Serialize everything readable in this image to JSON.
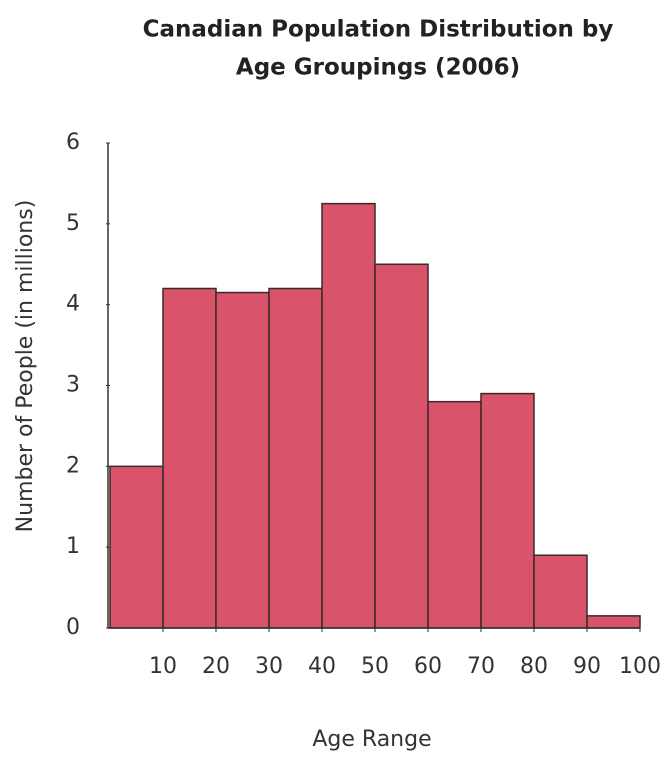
{
  "chart_data": {
    "type": "histogram",
    "title": [
      "Canadian Population Distribution by",
      "Age Groupings (2006)"
    ],
    "x_label": "Age Range",
    "y_label": "Number of People (in millions)",
    "bins": [
      0,
      10,
      20,
      30,
      40,
      50,
      60,
      70,
      80,
      90,
      100
    ],
    "values": [
      2.0,
      4.2,
      4.15,
      4.2,
      5.25,
      4.5,
      2.8,
      2.9,
      0.9,
      0.15
    ],
    "color": "#d9536b",
    "xlim": [
      0,
      100
    ],
    "xticks": [
      10,
      20,
      30,
      40,
      50,
      60,
      70,
      80,
      90,
      100
    ],
    "ylim": [
      0,
      6
    ],
    "yticks": [
      0,
      1,
      2,
      3,
      4,
      5,
      6
    ]
  }
}
